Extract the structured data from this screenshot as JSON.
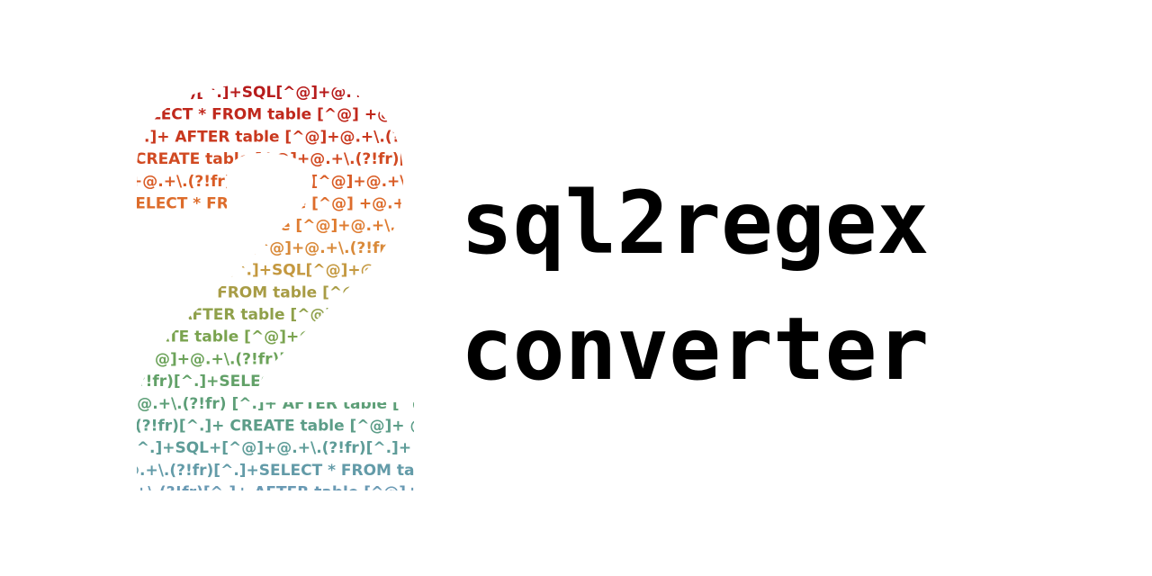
{
  "title": {
    "line1": "sql2regex",
    "line2": "converter"
  },
  "logo": {
    "lines": [
      "...(?!fr)[^.]+SQL[^@]+@.+\\.(?!fr)[^.]+SQL[^@]",
      "SELECT * FROM table [^@] +@.+\\.(?!fr)[^.]+SELECT",
      "[^.]+ AFTER table [^@]+@.+\\.(?!fr)[^.]+ AFTER table",
      "CREATE table [^@]+@.+\\.(?!fr)[^.]+ CREATE table",
      "+@.+\\.(?!fr)[^.]+SQL[^@]+@.+\\.(?!fr)[^.]+SQL",
      "SELECT * FROM table [^@] +@.+\\.(?!fr)[^.]+SELECT",
      "[^.]+ AFTER table [^@]+@.+\\.(?!fr)[^.]+ AFTER table",
      "CREATE table [^@]+@.+\\.(?!fr)[^.]+ CREATE table",
      "+@.+\\.(?!fr)[^.]+SQL[^@]+@.+\\.(?!fr)[^.]+SQL",
      "SELECT * FROM table [^@] +@.+\\.(?!fr)[^.]+SELECT",
      "[^.]+ AFTER table [^@]+@.+\\.(?!fr)[^.]+ AFTER table",
      "CREATE table [^@]+@.+\\.(?!fr)[^.]+ CREATE table",
      "[^@]+@.+\\.(?!fr)[^.]+@.+\\.(?!fr)[^.]+SQL[^@]",
      "(?!fr)[^.]+SELECT * FROM table [^@]+@.+\\.(?!fr)",
      "+@.+\\.(?!fr) [^.]+ AFTER table [^@]+@.+\\.(?!fr)",
      "(?!fr)[^.]+ CREATE table [^@]+ @.+\\.(?!fr)[^.]",
      "[^.]+SQL+[^@]+@.+\\.(?!fr)[^.]+ SQL[^@]+@.+",
      "@.+\\.(?!fr)[^.]+SELECT * FROM table [^@]+@.+",
      "+\\.(?!fr)[^.]+ AFTER table [^@]+@.+\\.(?!fr)"
    ],
    "colors": [
      "#b71c1c",
      "#c0281c",
      "#c9381e",
      "#d14a22",
      "#d95c26",
      "#dd6c2b",
      "#df7c31",
      "#d98a3a",
      "#c4983f",
      "#a89c45",
      "#8fa04a",
      "#7aa34f",
      "#6ca35a",
      "#62a168",
      "#5e9f78",
      "#5c9d88",
      "#5e9c98",
      "#639ba8",
      "#6a9ab4"
    ]
  }
}
